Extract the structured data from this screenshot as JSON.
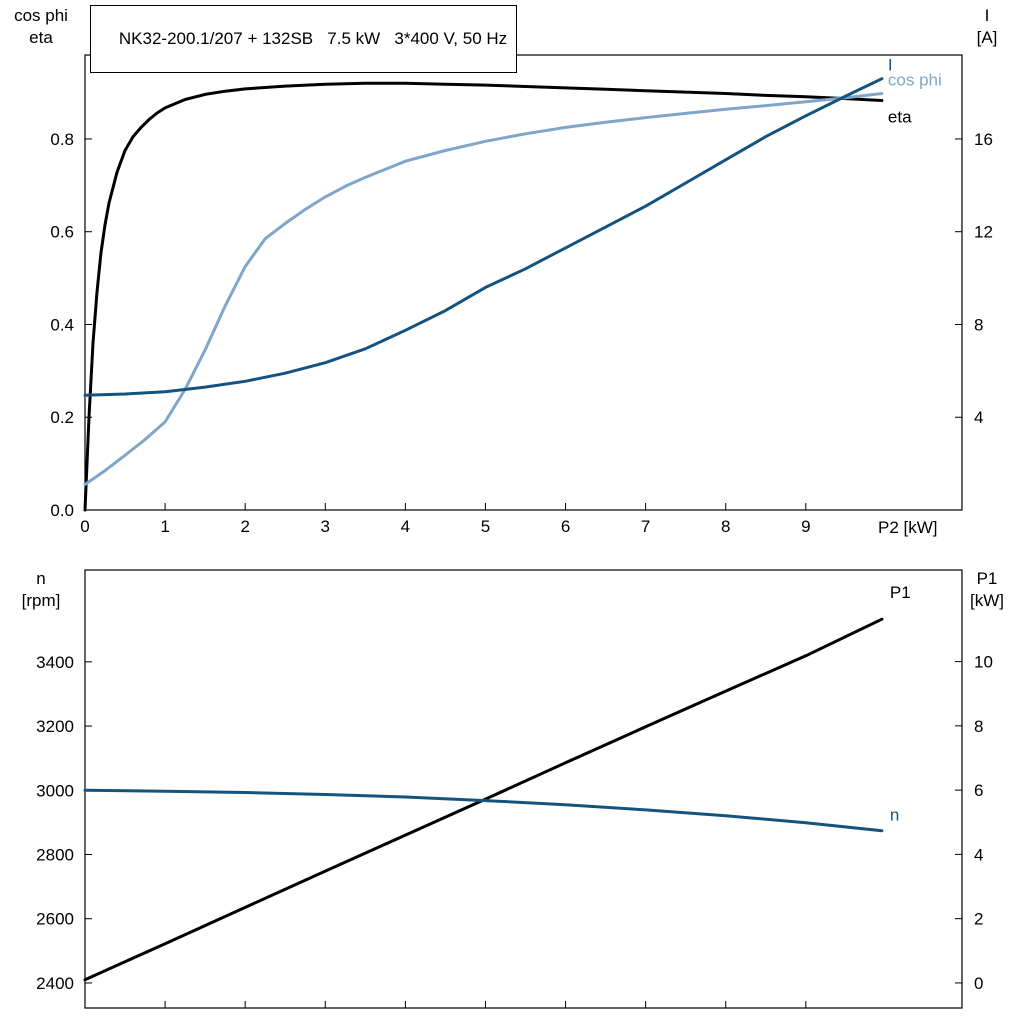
{
  "title": "NK32-200.1/207 + 132SB   7.5 kW   3*400 V, 50 Hz",
  "colors": {
    "frame": "#000000",
    "black_curve": "#000000",
    "dark_blue_curve": "#14537e",
    "light_blue_curve": "#7fa5c9"
  },
  "chart_data": [
    {
      "type": "line",
      "position": "top",
      "x_axis": {
        "label": "P2 [kW]",
        "min": 0,
        "max": 10.95,
        "tick_values": [
          0,
          1,
          2,
          3,
          4,
          5,
          6,
          7,
          8,
          9
        ],
        "tick_labels": [
          "0",
          "1",
          "2",
          "3",
          "4",
          "5",
          "6",
          "7",
          "8",
          "9"
        ],
        "show_tick_labels": true
      },
      "y_left": {
        "title_lines": [
          "cos phi",
          "eta"
        ],
        "min": 0,
        "max": 0.981,
        "tick_values": [
          0.0,
          0.2,
          0.4,
          0.6,
          0.8
        ],
        "tick_labels": [
          "0.0",
          "0.2",
          "0.4",
          "0.6",
          "0.8"
        ]
      },
      "y_right": {
        "title_lines": [
          "I",
          "[A]"
        ],
        "min": 0,
        "max": 19.62,
        "tick_values": [
          4,
          8,
          12,
          16
        ],
        "tick_labels": [
          "4",
          "8",
          "12",
          "16"
        ]
      },
      "series": [
        {
          "name": "eta",
          "axis": "left",
          "color": "#000000",
          "x": [
            0,
            0.05,
            0.1,
            0.15,
            0.2,
            0.25,
            0.3,
            0.4,
            0.5,
            0.6,
            0.7,
            0.8,
            0.9,
            1,
            1.25,
            1.5,
            1.75,
            2,
            2.5,
            3,
            3.5,
            4,
            4.5,
            5,
            5.5,
            6,
            6.5,
            7,
            7.5,
            8,
            8.5,
            9,
            9.5,
            9.95
          ],
          "y": [
            0,
            0.2,
            0.36,
            0.47,
            0.555,
            0.615,
            0.662,
            0.728,
            0.775,
            0.805,
            0.825,
            0.842,
            0.856,
            0.867,
            0.885,
            0.896,
            0.903,
            0.908,
            0.914,
            0.918,
            0.92,
            0.92,
            0.918,
            0.916,
            0.913,
            0.91,
            0.907,
            0.904,
            0.901,
            0.898,
            0.894,
            0.891,
            0.887,
            0.883
          ]
        },
        {
          "name": "cos phi",
          "axis": "left",
          "color": "#7fa5c9",
          "x": [
            0,
            0.25,
            0.5,
            0.75,
            1,
            1.25,
            1.5,
            1.75,
            2,
            2.25,
            2.5,
            2.75,
            3,
            3.25,
            3.5,
            4,
            4.5,
            5,
            5.5,
            6,
            6.5,
            7,
            7.5,
            8,
            8.5,
            9,
            9.5,
            9.95
          ],
          "y": [
            0.055,
            0.085,
            0.118,
            0.152,
            0.19,
            0.26,
            0.345,
            0.44,
            0.525,
            0.585,
            0.618,
            0.648,
            0.675,
            0.698,
            0.717,
            0.752,
            0.775,
            0.795,
            0.811,
            0.825,
            0.836,
            0.846,
            0.855,
            0.864,
            0.872,
            0.88,
            0.889,
            0.898
          ]
        },
        {
          "name": "I",
          "axis": "right",
          "color": "#14537e",
          "x": [
            0,
            0.5,
            1,
            1.5,
            2,
            2.5,
            3,
            3.5,
            4,
            4.5,
            5,
            5.5,
            6,
            6.5,
            7,
            7.5,
            8,
            8.5,
            9,
            9.5,
            9.95
          ],
          "y": [
            4.95,
            5.0,
            5.1,
            5.3,
            5.55,
            5.9,
            6.35,
            6.95,
            7.75,
            8.6,
            9.6,
            10.4,
            11.3,
            12.2,
            13.1,
            14.1,
            15.1,
            16.1,
            17.0,
            17.85,
            18.6
          ]
        }
      ]
    },
    {
      "type": "line",
      "position": "bottom",
      "x_axis": {
        "label": "",
        "min": 0,
        "max": 10.95,
        "tick_values": [
          0,
          1,
          2,
          3,
          4,
          5,
          6,
          7,
          8,
          9
        ],
        "tick_labels": [],
        "show_tick_labels": false
      },
      "y_left": {
        "title_lines": [
          "n",
          "[rpm]"
        ],
        "min": 2322,
        "max": 3686,
        "tick_values": [
          2400,
          2600,
          2800,
          3000,
          3200,
          3400
        ],
        "tick_labels": [
          "2400",
          "2600",
          "2800",
          "3000",
          "3200",
          "3400"
        ]
      },
      "y_right": {
        "title_lines": [
          "P1",
          "[kW]"
        ],
        "min": -0.78,
        "max": 12.85,
        "tick_values": [
          0,
          2,
          4,
          6,
          8,
          10
        ],
        "tick_labels": [
          "0",
          "2",
          "4",
          "6",
          "8",
          "10"
        ]
      },
      "series": [
        {
          "name": "P1",
          "axis": "right",
          "color": "#000000",
          "x": [
            0,
            1,
            2,
            3,
            4,
            5,
            6,
            7,
            8,
            9,
            9.95
          ],
          "y": [
            0.1,
            1.22,
            2.35,
            3.48,
            4.6,
            5.72,
            6.85,
            7.97,
            9.08,
            10.18,
            11.32
          ]
        },
        {
          "name": "n",
          "axis": "left",
          "color": "#14537e",
          "x": [
            0,
            1,
            2,
            3,
            4,
            5,
            6,
            7,
            8,
            9,
            9.95
          ],
          "y": [
            3000,
            2997,
            2993,
            2987,
            2979,
            2968,
            2955,
            2939,
            2921,
            2899,
            2874
          ]
        }
      ]
    }
  ]
}
